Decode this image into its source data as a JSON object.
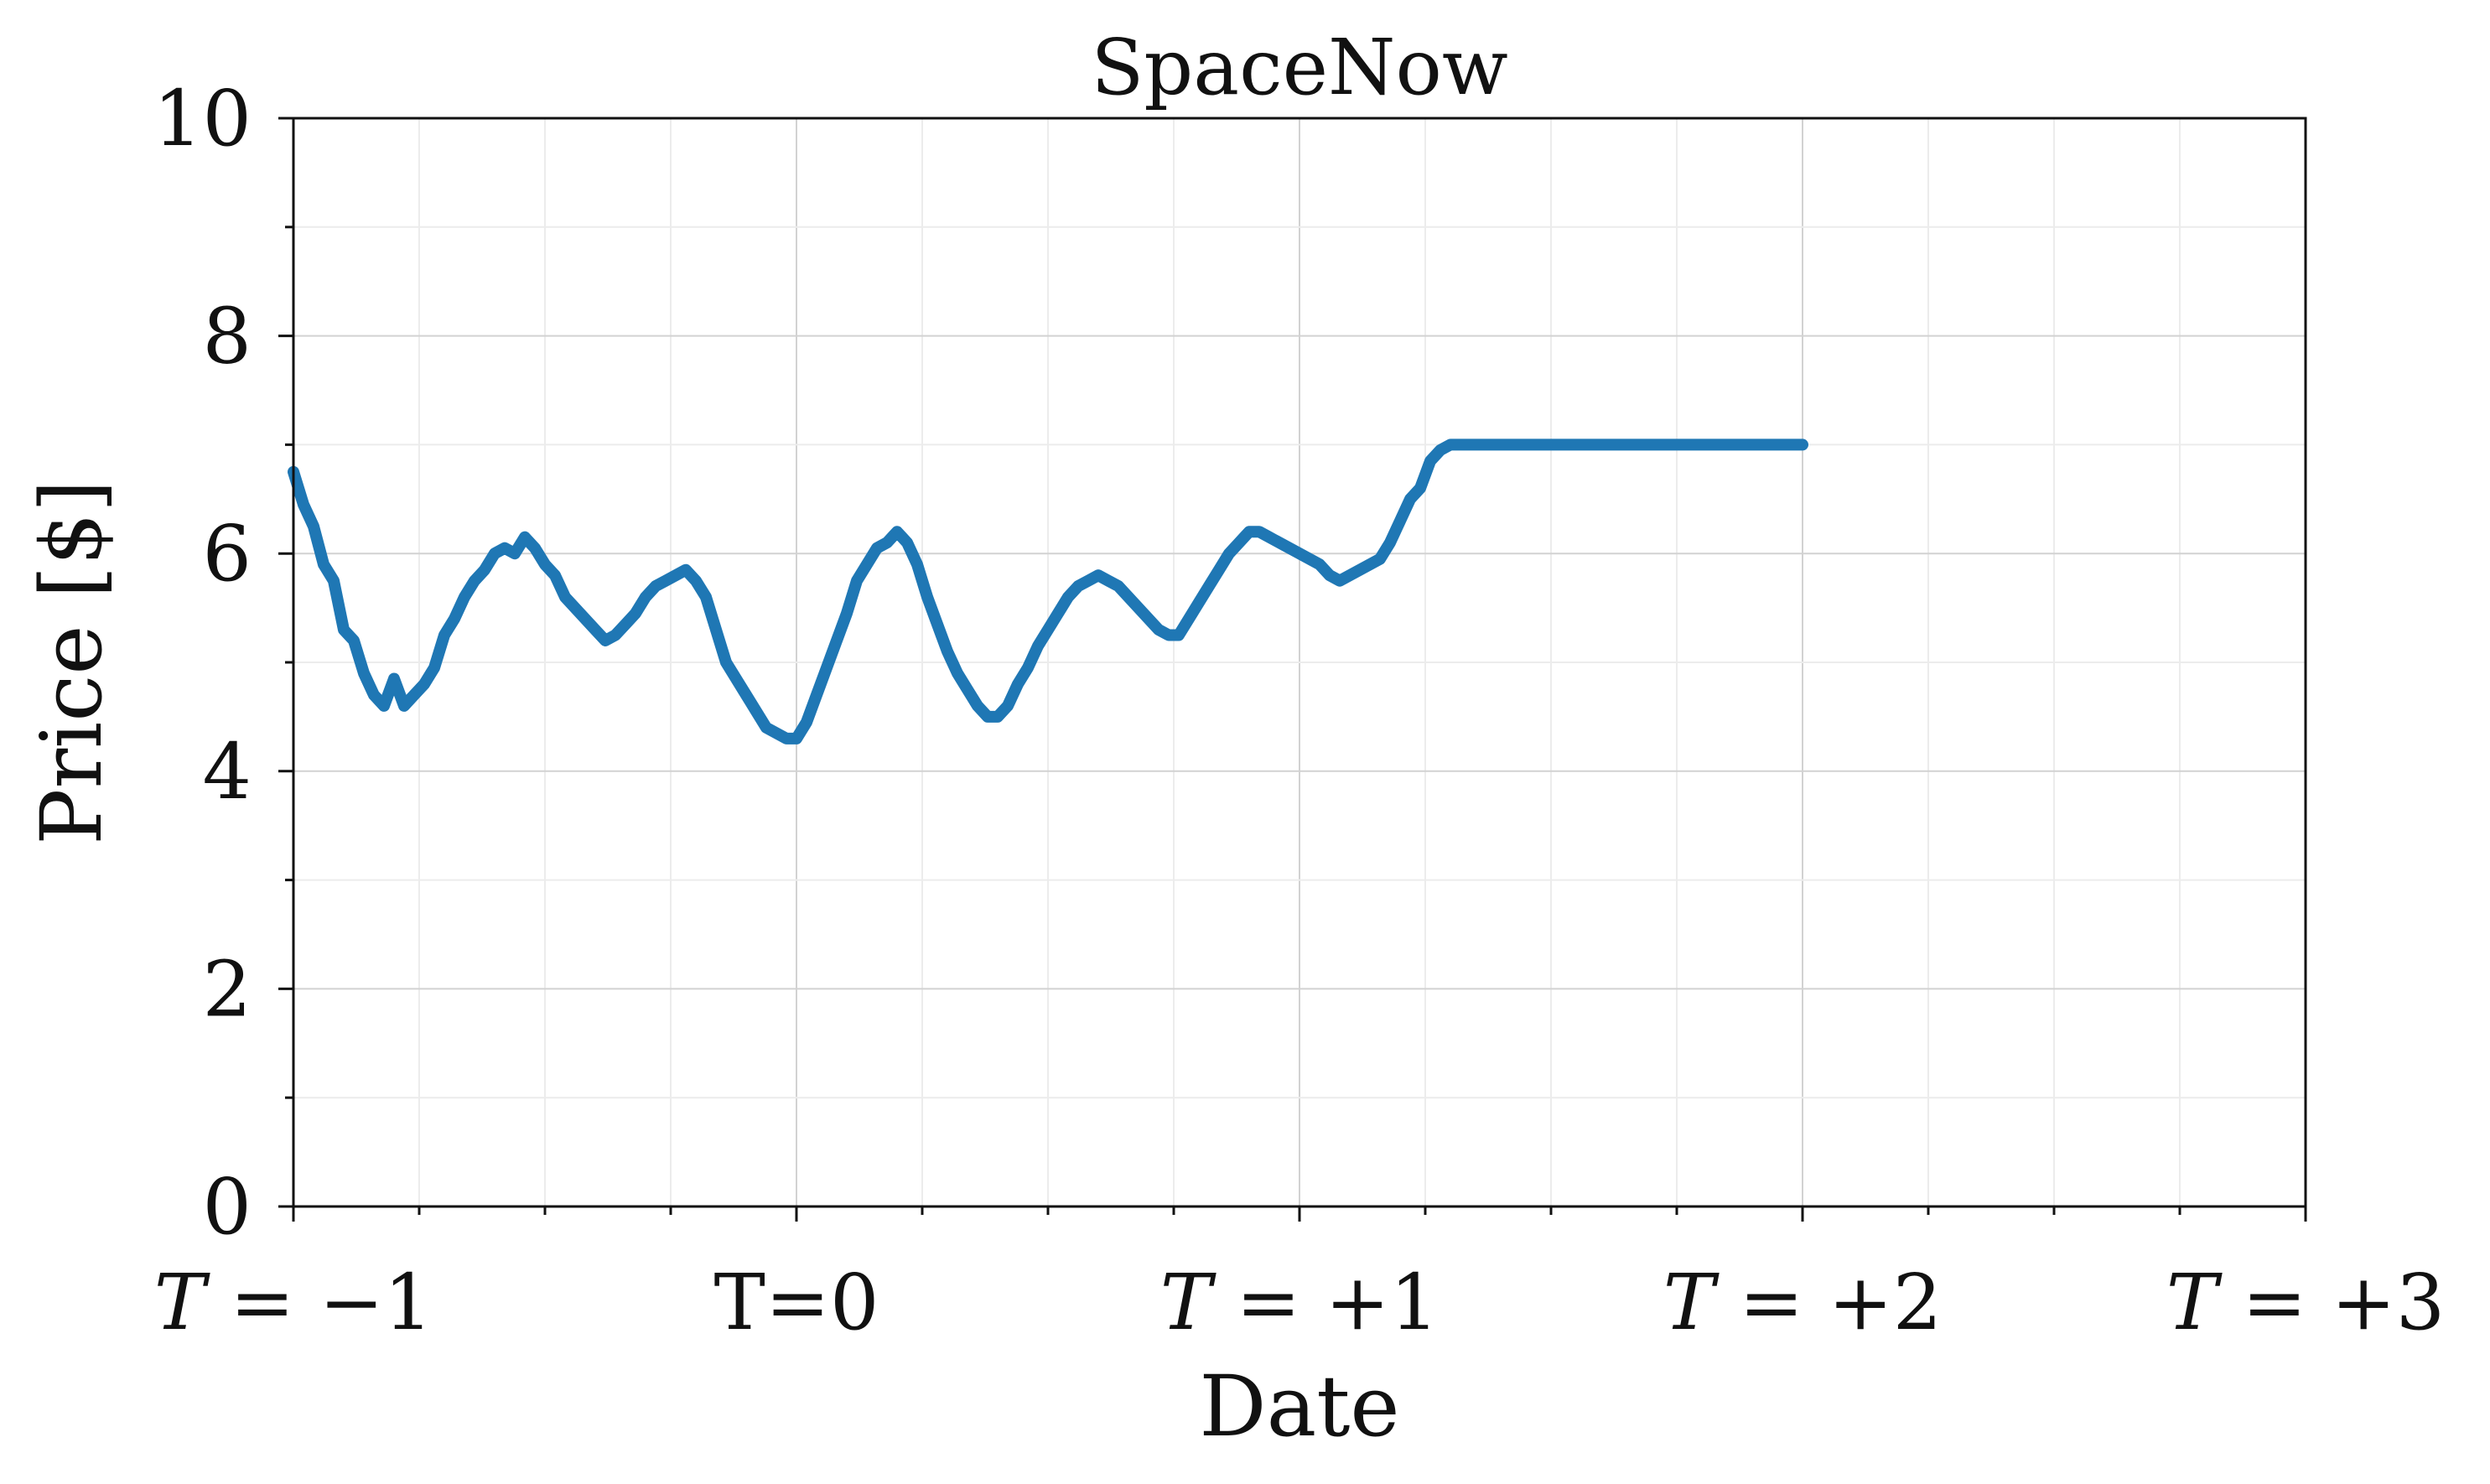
{
  "chart_data": {
    "type": "line",
    "title": "SpaceNow",
    "xlabel": "Date",
    "ylabel": "Price [$]",
    "xlim": [
      -1,
      3
    ],
    "ylim": [
      0,
      10
    ],
    "x_tick_values": [
      -1,
      0,
      1,
      2,
      3
    ],
    "x_tick_labels": [
      "T = −1",
      "T=0",
      "T = +1",
      "T = +2",
      "T = +3"
    ],
    "x_tick_italic_T": [
      true,
      false,
      true,
      true,
      true
    ],
    "y_tick_values": [
      0,
      2,
      4,
      6,
      8,
      10
    ],
    "y_tick_labels": [
      "0",
      "2",
      "4",
      "6",
      "8",
      "10"
    ],
    "x_minor_step": 0.25,
    "y_minor_step": 1,
    "grid": true,
    "series": [
      {
        "color": "#1f77b4",
        "x": [
          -1.0,
          -0.98,
          -0.96,
          -0.94,
          -0.92,
          -0.9,
          -0.88,
          -0.86,
          -0.84,
          -0.82,
          -0.8,
          -0.78,
          -0.76,
          -0.74,
          -0.72,
          -0.7,
          -0.68,
          -0.66,
          -0.64,
          -0.62,
          -0.6,
          -0.58,
          -0.56,
          -0.54,
          -0.52,
          -0.5,
          -0.48,
          -0.46,
          -0.44,
          -0.42,
          -0.4,
          -0.38,
          -0.36,
          -0.34,
          -0.32,
          -0.3,
          -0.28,
          -0.26,
          -0.24,
          -0.22,
          -0.2,
          -0.18,
          -0.16,
          -0.14,
          -0.12,
          -0.1,
          -0.08,
          -0.06,
          -0.04,
          -0.02,
          0.0,
          0.02,
          0.04,
          0.06,
          0.08,
          0.1,
          0.12,
          0.14,
          0.16,
          0.18,
          0.2,
          0.22,
          0.24,
          0.26,
          0.28,
          0.3,
          0.32,
          0.34,
          0.36,
          0.38,
          0.4,
          0.42,
          0.44,
          0.46,
          0.48,
          0.5,
          0.52,
          0.54,
          0.56,
          0.58,
          0.6,
          0.62,
          0.64,
          0.66,
          0.68,
          0.7,
          0.72,
          0.74,
          0.76,
          0.78,
          0.8,
          0.82,
          0.84,
          0.86,
          0.88,
          0.9,
          0.92,
          0.94,
          0.96,
          0.98,
          1.0,
          1.02,
          1.04,
          1.06,
          1.08,
          1.1,
          1.12,
          1.14,
          1.16,
          1.18,
          1.2,
          1.22,
          1.24,
          1.26,
          1.28,
          1.3,
          1.32,
          1.34,
          1.36,
          1.38,
          1.4,
          1.42,
          1.44,
          1.46,
          1.48,
          1.5,
          1.52,
          1.54,
          1.56,
          1.58,
          1.6,
          1.62,
          1.64,
          1.66,
          1.68,
          1.7,
          1.72,
          1.74,
          1.76,
          1.78,
          1.8,
          1.82,
          1.84,
          1.86,
          1.88,
          1.9,
          1.92,
          1.94,
          1.96,
          1.98,
          2.0
        ],
        "y": [
          6.75,
          6.45,
          6.25,
          5.9,
          5.75,
          5.3,
          5.2,
          4.9,
          4.7,
          4.6,
          4.85,
          4.6,
          4.7,
          4.8,
          4.95,
          5.25,
          5.4,
          5.6,
          5.75,
          5.85,
          6.0,
          6.05,
          6.0,
          6.15,
          6.05,
          5.9,
          5.8,
          5.6,
          5.5,
          5.4,
          5.3,
          5.2,
          5.25,
          5.35,
          5.45,
          5.6,
          5.7,
          5.75,
          5.8,
          5.85,
          5.75,
          5.6,
          5.3,
          5.0,
          4.85,
          4.7,
          4.55,
          4.4,
          4.35,
          4.3,
          4.3,
          4.45,
          4.7,
          4.95,
          5.2,
          5.45,
          5.75,
          5.9,
          6.05,
          6.1,
          6.2,
          6.1,
          5.9,
          5.6,
          5.35,
          5.1,
          4.9,
          4.75,
          4.6,
          4.5,
          4.5,
          4.6,
          4.8,
          4.95,
          5.15,
          5.3,
          5.45,
          5.6,
          5.7,
          5.75,
          5.8,
          5.75,
          5.7,
          5.6,
          5.5,
          5.4,
          5.3,
          5.25,
          5.25,
          5.4,
          5.55,
          5.7,
          5.85,
          6.0,
          6.1,
          6.2,
          6.2,
          6.15,
          6.1,
          6.05,
          6.0,
          5.95,
          5.9,
          5.8,
          5.75,
          5.8,
          5.85,
          5.9,
          5.95,
          6.1,
          6.3,
          6.5,
          6.6,
          6.85,
          6.95,
          7.0,
          7.0,
          7.0,
          7.0,
          7.0,
          7.0,
          7.0,
          7.0,
          7.0,
          7.0,
          7.0,
          7.0,
          7.0,
          7.0,
          7.0,
          7.0,
          7.0,
          7.0,
          7.0,
          7.0,
          7.0,
          7.0,
          7.0,
          7.0,
          7.0,
          7.0,
          7.0,
          7.0,
          7.0,
          7.0,
          7.0,
          7.0,
          7.0,
          7.0,
          7.0,
          7.0
        ]
      }
    ]
  }
}
